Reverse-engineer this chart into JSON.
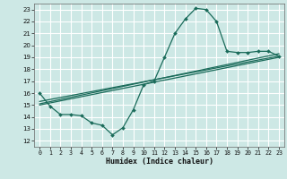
{
  "title": "",
  "xlabel": "Humidex (Indice chaleur)",
  "ylabel": "",
  "xlim": [
    -0.5,
    23.5
  ],
  "ylim": [
    11.5,
    23.5
  ],
  "yticks": [
    12,
    13,
    14,
    15,
    16,
    17,
    18,
    19,
    20,
    21,
    22,
    23
  ],
  "xticks": [
    0,
    1,
    2,
    3,
    4,
    5,
    6,
    7,
    8,
    9,
    10,
    11,
    12,
    13,
    14,
    15,
    16,
    17,
    18,
    19,
    20,
    21,
    22,
    23
  ],
  "bg_color": "#cde8e5",
  "grid_color": "#ffffff",
  "line_color": "#1a6b5a",
  "series1_x": [
    0,
    1,
    2,
    3,
    4,
    5,
    6,
    7,
    8,
    9,
    10,
    11,
    12,
    13,
    14,
    15,
    16,
    17,
    18,
    19,
    20,
    21,
    22,
    23
  ],
  "series1_y": [
    16.0,
    14.9,
    14.2,
    14.2,
    14.1,
    13.5,
    13.3,
    12.5,
    13.1,
    14.6,
    16.7,
    17.0,
    19.0,
    21.0,
    22.2,
    23.1,
    23.0,
    22.0,
    19.5,
    19.4,
    19.4,
    19.5,
    19.5,
    19.1
  ],
  "series2_x": [
    0,
    23
  ],
  "series2_y": [
    15.1,
    19.3
  ],
  "series3_x": [
    0,
    23
  ],
  "series3_y": [
    15.3,
    19.1
  ],
  "series4_x": [
    0,
    23
  ],
  "series4_y": [
    15.0,
    19.0
  ]
}
